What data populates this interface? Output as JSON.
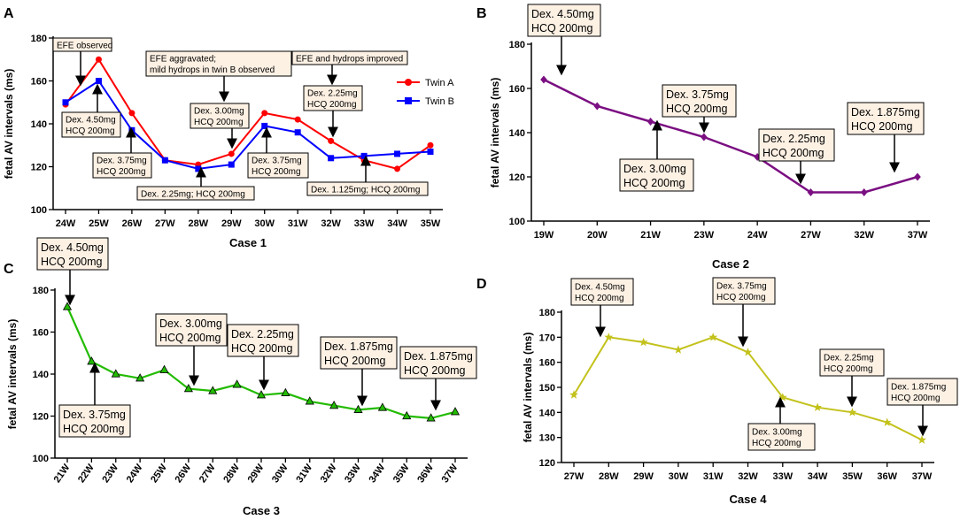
{
  "chart_data": [
    {
      "panel_label": "A",
      "type": "line",
      "title": "",
      "xlabel": "Case 1",
      "ylabel": "fetal AV intervals (ms)",
      "categories": [
        "24W",
        "25W",
        "26W",
        "27W",
        "28W",
        "29W",
        "30W",
        "31W",
        "32W",
        "33W",
        "34W",
        "35W"
      ],
      "ylim": [
        100,
        180
      ],
      "yticks": [
        "100",
        "120",
        "140",
        "160",
        "180"
      ],
      "legend_position": "top-right",
      "series": [
        {
          "name": "Twin A",
          "color": "#ff0000",
          "marker": "circle",
          "values": [
            149,
            170,
            145,
            123,
            121,
            126,
            145,
            142,
            132,
            123,
            119,
            130
          ]
        },
        {
          "name": "Twin B",
          "color": "#0000ff",
          "marker": "square",
          "values": [
            150,
            160,
            137,
            123,
            119,
            121,
            139,
            136,
            124,
            125,
            126,
            127
          ]
        }
      ],
      "annotations": [
        {
          "lines": [
            "EFE observed"
          ],
          "boxed": true
        },
        {
          "lines": [
            "EFE aggravated;",
            "mild hydrops in twin B observed"
          ],
          "boxed": true
        },
        {
          "lines": [
            "EFE and hydrops improved"
          ],
          "boxed": true
        },
        {
          "lines": [
            "Dex. 4.50mg",
            "HCQ 200mg"
          ],
          "boxed": true
        },
        {
          "lines": [
            "Dex. 3.75mg",
            "HCQ 200mg"
          ],
          "boxed": true
        },
        {
          "lines": [
            "Dex. 2.25mg; HCQ 200mg"
          ],
          "boxed": true
        },
        {
          "lines": [
            "Dex. 3.00mg",
            "HCQ 200mg"
          ],
          "boxed": true
        },
        {
          "lines": [
            "Dex. 3.75mg",
            "HCQ 200mg"
          ],
          "boxed": true
        },
        {
          "lines": [
            "Dex. 2.25mg",
            "HCQ 200mg"
          ],
          "boxed": true
        },
        {
          "lines": [
            "Dex. 1.125mg; HCQ 200mg"
          ],
          "boxed": true
        }
      ]
    },
    {
      "panel_label": "B",
      "type": "line",
      "title": "",
      "xlabel": "Case 2",
      "ylabel": "fetal AV intervals (ms)",
      "categories": [
        "19W",
        "20W",
        "21W",
        "23W",
        "24W",
        "27W",
        "32W",
        "37W"
      ],
      "ylim": [
        100,
        180
      ],
      "yticks": [
        "100",
        "120",
        "140",
        "160",
        "180"
      ],
      "series": [
        {
          "name": "Case 2",
          "color": "#7b0f82",
          "marker": "diamond",
          "values": [
            164,
            152,
            145,
            138,
            129,
            113,
            113,
            120
          ]
        }
      ],
      "annotations": [
        {
          "lines": [
            "Dex. 4.50mg",
            "HCQ 200mg"
          ],
          "boxed": true
        },
        {
          "lines": [
            "Dex. 3.75mg",
            "HCQ 200mg"
          ],
          "boxed": true
        },
        {
          "lines": [
            "Dex. 3.00mg",
            "HCQ 200mg"
          ],
          "boxed": true
        },
        {
          "lines": [
            "Dex. 2.25mg",
            "HCQ 200mg"
          ],
          "boxed": true
        },
        {
          "lines": [
            "Dex. 1.875mg",
            "HCQ 200mg"
          ],
          "boxed": true
        }
      ]
    },
    {
      "panel_label": "C",
      "type": "line",
      "title": "",
      "xlabel": "Case 3",
      "ylabel": "fetal AV intervals (ms)",
      "categories": [
        "21W",
        "22W",
        "23W",
        "24W",
        "25W",
        "26W",
        "27W",
        "28W",
        "29W",
        "30W",
        "31W",
        "32W",
        "33W",
        "34W",
        "35W",
        "36W",
        "37W"
      ],
      "ylim": [
        100,
        180
      ],
      "yticks": [
        "100",
        "120",
        "140",
        "160",
        "180"
      ],
      "series": [
        {
          "name": "Case 3",
          "color": "#22bb00",
          "marker": "triangle",
          "values": [
            172,
            146,
            140,
            138,
            142,
            133,
            132,
            135,
            130,
            131,
            127,
            125,
            123,
            124,
            120,
            119,
            122
          ]
        }
      ],
      "annotations": [
        {
          "lines": [
            "Dex. 4.50mg",
            "HCQ 200mg"
          ],
          "boxed": true
        },
        {
          "lines": [
            "Dex. 3.75mg",
            "HCQ 200mg"
          ],
          "boxed": true
        },
        {
          "lines": [
            "Dex. 3.00mg",
            "HCQ 200mg"
          ],
          "boxed": true
        },
        {
          "lines": [
            "Dex. 2.25mg",
            "HCQ 200mg"
          ],
          "boxed": true
        },
        {
          "lines": [
            "Dex. 1.875mg",
            "HCQ 200mg"
          ],
          "boxed": true
        },
        {
          "lines": [
            "Dex. 1.875mg",
            "HCQ 200mg"
          ],
          "boxed": true
        }
      ]
    },
    {
      "panel_label": "D",
      "type": "line",
      "title": "",
      "xlabel": "Case 4",
      "ylabel": "fetal AV intervals (ms)",
      "categories": [
        "27W",
        "28W",
        "29W",
        "30W",
        "31W",
        "32W",
        "33W",
        "34W",
        "35W",
        "36W",
        "37W"
      ],
      "ylim": [
        120,
        180
      ],
      "yticks": [
        "120",
        "130",
        "140",
        "150",
        "160",
        "170",
        "180"
      ],
      "series": [
        {
          "name": "Case 4",
          "color": "#c3c21c",
          "marker": "star",
          "values": [
            147,
            170,
            168,
            165,
            170,
            164,
            146,
            142,
            140,
            136,
            129
          ]
        }
      ],
      "annotations": [
        {
          "lines": [
            "Dex. 4.50mg",
            "HCQ 200mg"
          ],
          "boxed": true
        },
        {
          "lines": [
            "Dex. 3.75mg",
            "HCQ 200mg"
          ],
          "boxed": true
        },
        {
          "lines": [
            "Dex. 3.00mg",
            "HCQ 200mg"
          ],
          "boxed": true
        },
        {
          "lines": [
            "Dex. 2.25mg",
            "HCQ 200mg"
          ],
          "boxed": true
        },
        {
          "lines": [
            "Dex. 1.875mg",
            "HCQ 200mg"
          ],
          "boxed": true
        }
      ]
    }
  ]
}
